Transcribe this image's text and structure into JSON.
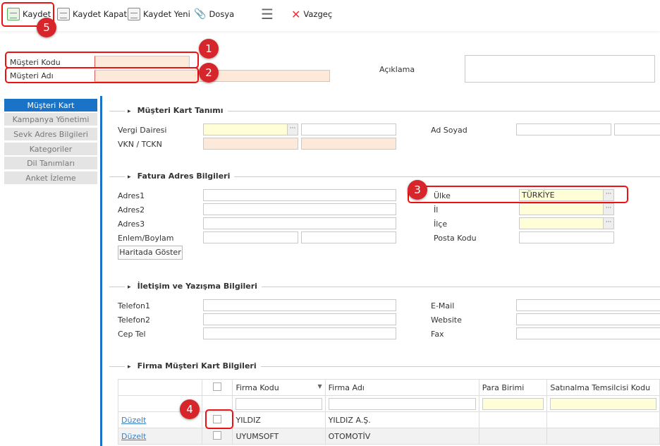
{
  "toolbar": {
    "save": "Kaydet",
    "save_close": "Kaydet Kapat",
    "save_new": "Kaydet Yeni",
    "file": "Dosya",
    "cancel": "Vazgeç"
  },
  "header": {
    "customer_code_label": "Müşteri Kodu",
    "customer_name_label": "Müşteri Adı",
    "description_label": "Açıklama"
  },
  "sidebar": {
    "items": [
      {
        "label": "Müşteri Kart",
        "active": true
      },
      {
        "label": "Kampanya Yönetimi"
      },
      {
        "label": "Sevk Adres Bilgileri"
      },
      {
        "label": "Kategoriler"
      },
      {
        "label": "Dil Tanımları"
      },
      {
        "label": "Anket İzleme"
      }
    ]
  },
  "sections": {
    "card": {
      "title": "Müşteri Kart Tanımı",
      "tax_office": "Vergi Dairesi",
      "vkn": "VKN / TCKN",
      "full_name": "Ad Soyad"
    },
    "address": {
      "title": "Fatura Adres Bilgileri",
      "address1": "Adres1",
      "address2": "Adres2",
      "address3": "Adres3",
      "latlong": "Enlem/Boylam",
      "map_button": "Haritada Göster",
      "country": "Ülke",
      "country_value": "TÜRKİYE",
      "city": "İl",
      "district": "İlçe",
      "postal": "Posta Kodu"
    },
    "contact": {
      "title": "İletişim ve Yazışma Bilgileri",
      "phone1": "Telefon1",
      "phone2": "Telefon2",
      "mobile": "Cep Tel",
      "email": "E-Mail",
      "website": "Website",
      "fax": "Fax"
    },
    "firm": {
      "title": "Firma Müşteri Kart Bilgileri",
      "columns": [
        "Firma Kodu",
        "Firma Adı",
        "Para Birimi",
        "Satınalma Temsilcisi Kodu"
      ],
      "rows": [
        {
          "action": "Düzelt",
          "code": "YILDIZ",
          "name": "YILDIZ A.Ş."
        },
        {
          "action": "Düzelt",
          "code": "UYUMSOFT",
          "name": "OTOMOTİV"
        }
      ]
    }
  },
  "annotations": [
    "1",
    "2",
    "3",
    "4",
    "5"
  ],
  "colors": {
    "required": "#fde9d9",
    "lookup": "#fffed7",
    "active_tab": "#1a73c7",
    "annotation": "#d7262b"
  }
}
